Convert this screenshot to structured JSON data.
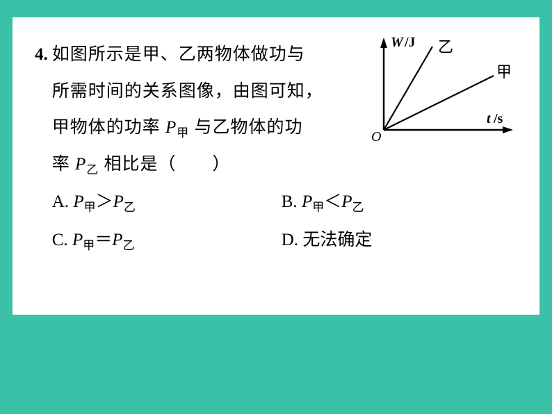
{
  "question": {
    "number": "4.",
    "line1": "如图所示是甲、乙两物体做功与",
    "line2": "所需时间的关系图像，由图可知，",
    "line3_a": "甲物体的功率 ",
    "line3_P": "P",
    "line3_sub1": "甲",
    "line3_b": " 与乙物体的功",
    "line4_a": "率 ",
    "line4_P": "P",
    "line4_sub": "乙",
    "line4_b": " 相比是（　　）"
  },
  "options": {
    "A_prefix": "A. ",
    "A_P1": "P",
    "A_sub1": "甲",
    "A_op": "＞",
    "A_P2": "P",
    "A_sub2": "乙",
    "B_prefix": "B. ",
    "B_P1": "P",
    "B_sub1": "甲",
    "B_op": "＜",
    "B_P2": "P",
    "B_sub2": "乙",
    "C_prefix": "C. ",
    "C_P1": "P",
    "C_sub1": "甲",
    "C_op": "＝",
    "C_P2": "P",
    "C_sub2": "乙",
    "D_prefix": "D. ",
    "D_text": "无法确定"
  },
  "chart": {
    "type": "line",
    "y_axis_label": "W/J",
    "x_axis_label": "t/s",
    "origin_label": "O",
    "line1_label": "乙",
    "line2_label": "甲",
    "axis_color": "#000000",
    "line_color": "#000000",
    "text_color": "#000000",
    "y_axis_label_fontsize": 20,
    "x_axis_label_fontsize": 20,
    "line_width": 2.2,
    "axis_width": 2.5,
    "arrow_size": 9
  },
  "colors": {
    "page_bg": "#3cc1a9",
    "box_bg": "#ffffff",
    "text": "#000000"
  }
}
